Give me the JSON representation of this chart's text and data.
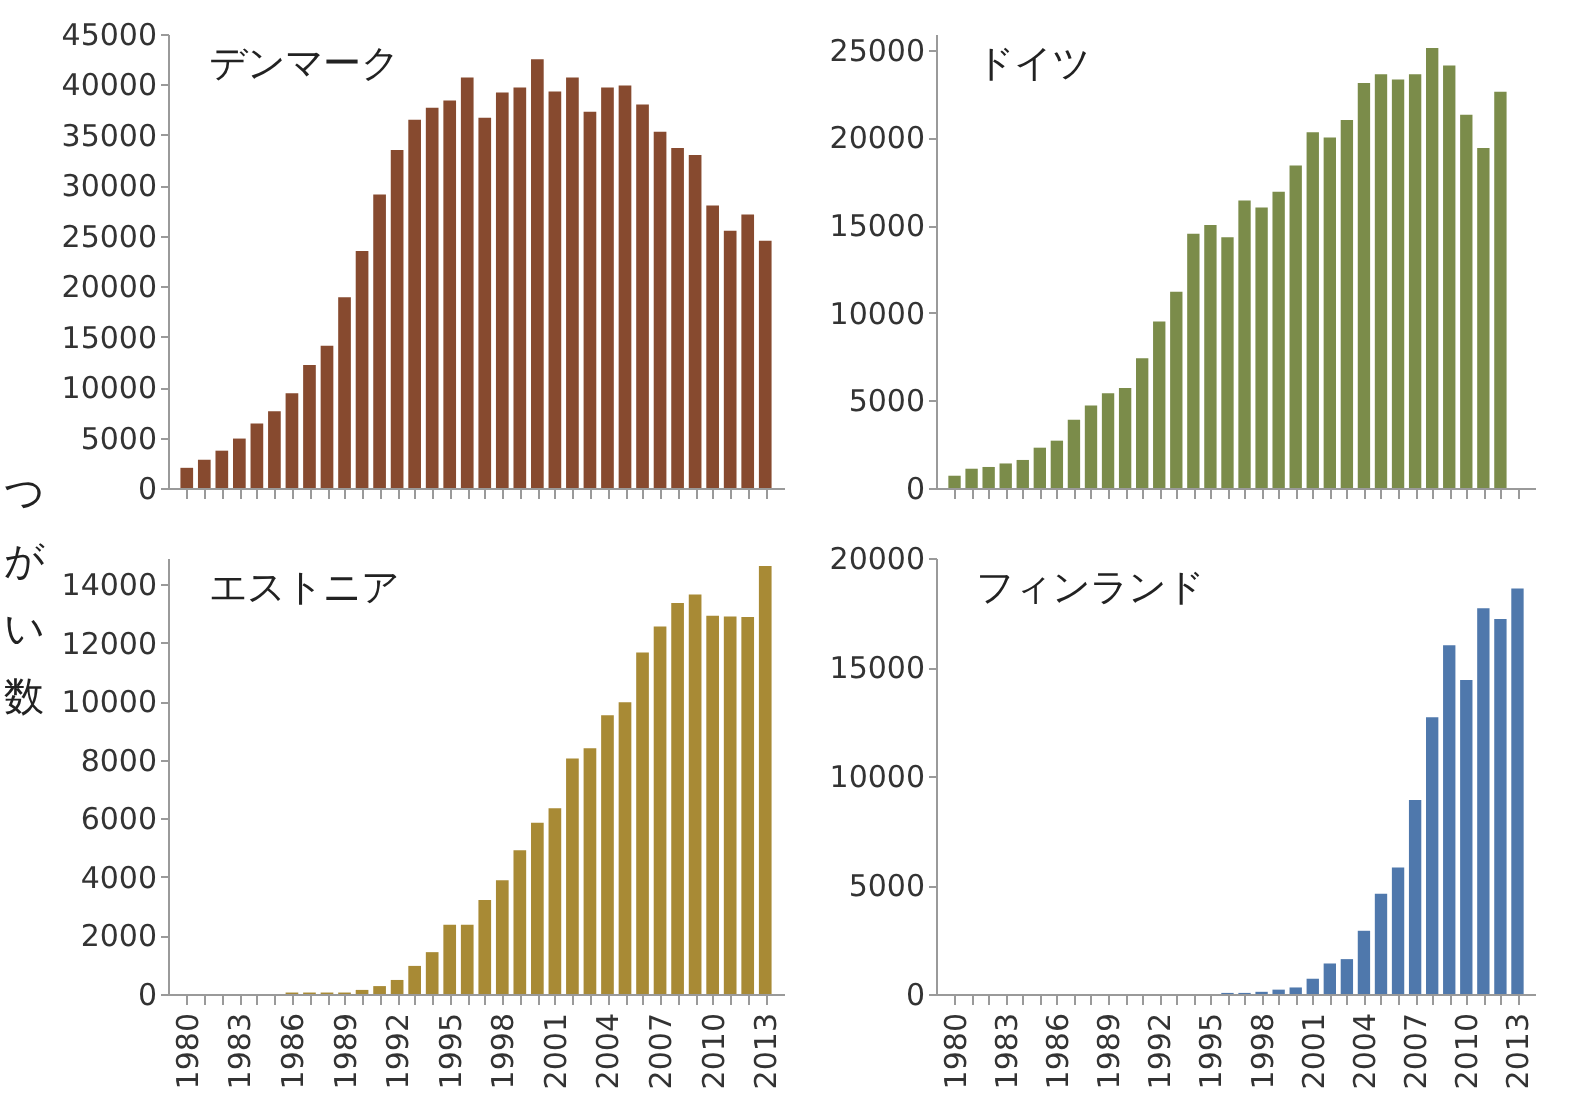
{
  "chart_data": [
    {
      "type": "bar",
      "title": "デンマーク",
      "ylabel": "つがい数",
      "tick_labels": "y",
      "grid": false,
      "categories": [
        "1980",
        null,
        null,
        "1983",
        null,
        null,
        "1986",
        null,
        null,
        "1989",
        null,
        null,
        "1992",
        null,
        null,
        "1995",
        null,
        null,
        "1998",
        null,
        null,
        "2001",
        null,
        null,
        "2004",
        null,
        null,
        "2007",
        null,
        null,
        "2010",
        null,
        null,
        "2013"
      ],
      "series": [
        {
          "color": "#874a2f",
          "values": [
            2000,
            2800,
            3700,
            4900,
            6400,
            7600,
            9400,
            12200,
            14100,
            18900,
            23500,
            29100,
            33500,
            36500,
            37700,
            38400,
            40700,
            36700,
            39200,
            39700,
            42500,
            39300,
            40700,
            37300,
            39700,
            39900,
            38000,
            35300,
            33700,
            33000,
            28000,
            25500,
            27100,
            24500
          ]
        }
      ],
      "ylim": [
        0,
        45000
      ],
      "yticks": [
        0,
        5000,
        10000,
        15000,
        20000,
        25000,
        30000,
        35000,
        40000,
        45000
      ]
    },
    {
      "type": "bar",
      "title": "ドイツ",
      "tick_labels": "y",
      "grid": false,
      "categories": [
        "1980",
        null,
        null,
        "1983",
        null,
        null,
        "1986",
        null,
        null,
        "1989",
        null,
        null,
        "1992",
        null,
        null,
        "1995",
        null,
        null,
        "1998",
        null,
        null,
        "2001",
        null,
        null,
        "2004",
        null,
        null,
        "2007",
        null,
        null,
        "2010",
        null,
        null,
        "2013"
      ],
      "series": [
        {
          "color": "#7b8c4a",
          "values": [
            700,
            1100,
            1200,
            1400,
            1600,
            2300,
            2700,
            3900,
            4700,
            5400,
            5700,
            7400,
            9500,
            11200,
            14500,
            15000,
            14300,
            16400,
            16000,
            16900,
            18400,
            20300,
            20000,
            21000,
            23100,
            23600,
            23300,
            23600,
            25100,
            24100,
            21300,
            19400,
            22600,
            null
          ]
        }
      ],
      "ylim": [
        0,
        25900
      ],
      "yticks": [
        0,
        5000,
        10000,
        15000,
        20000,
        25000
      ]
    },
    {
      "type": "bar",
      "title": "エストニア",
      "grid": false,
      "categories": [
        "1980",
        null,
        null,
        "1983",
        null,
        null,
        "1986",
        null,
        null,
        "1989",
        null,
        null,
        "1992",
        null,
        null,
        "1995",
        null,
        null,
        "1998",
        null,
        null,
        "2001",
        null,
        null,
        "2004",
        null,
        null,
        "2007",
        null,
        null,
        "2010",
        null,
        null,
        "2013"
      ],
      "series": [
        {
          "color": "#a88a35",
          "values": [
            0,
            0,
            0,
            0,
            0,
            0,
            50,
            50,
            50,
            50,
            140,
            270,
            480,
            960,
            1430,
            2370,
            2370,
            3210,
            3890,
            4910,
            5850,
            6350,
            8050,
            8400,
            9530,
            9970,
            11670,
            12560,
            13360,
            13650,
            12930,
            12900,
            12880,
            14630
          ]
        }
      ],
      "ylim": [
        0,
        14900
      ],
      "yticks": [
        0,
        2000,
        4000,
        6000,
        8000,
        10000,
        12000,
        14000
      ]
    },
    {
      "type": "bar",
      "title": "フィンランド",
      "grid": false,
      "categories": [
        "1980",
        null,
        null,
        "1983",
        null,
        null,
        "1986",
        null,
        null,
        "1989",
        null,
        null,
        "1992",
        null,
        null,
        "1995",
        null,
        null,
        "1998",
        null,
        null,
        "2001",
        null,
        null,
        "2004",
        null,
        null,
        "2007",
        null,
        null,
        "2010",
        null,
        null,
        "2013"
      ],
      "series": [
        {
          "color": "#4f78ac",
          "values": [
            0,
            0,
            0,
            0,
            0,
            0,
            0,
            0,
            0,
            0,
            0,
            0,
            0,
            0,
            0,
            0,
            50,
            50,
            100,
            200,
            300,
            700,
            1400,
            1600,
            2900,
            4600,
            5800,
            8900,
            12700,
            16000,
            14400,
            17700,
            17200,
            18600
          ]
        }
      ],
      "ylim": [
        0,
        20000
      ],
      "yticks": [
        0,
        5000,
        10000,
        15000,
        20000
      ]
    }
  ]
}
